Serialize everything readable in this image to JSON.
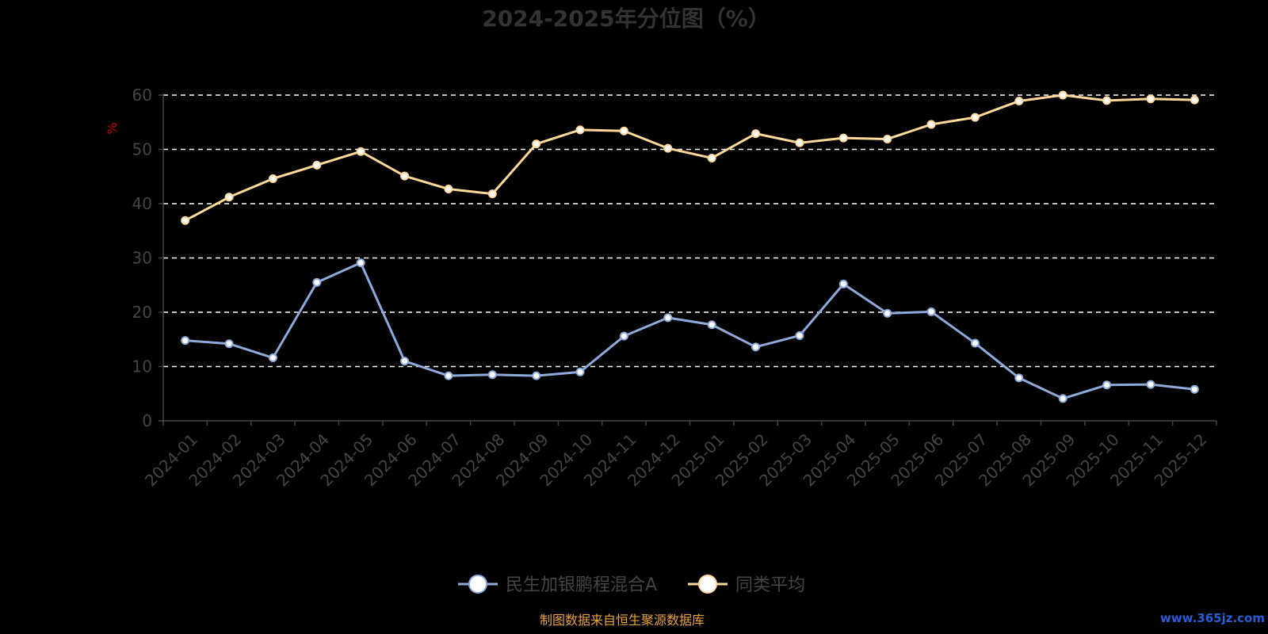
{
  "chart_data": {
    "type": "line",
    "title": "2024-2025年分位图（%）",
    "ylabel": "%",
    "ylim": [
      0,
      60
    ],
    "yticks": [
      0,
      10,
      20,
      30,
      40,
      50,
      60
    ],
    "grid": true,
    "legend_position": "bottom",
    "categories": [
      "2024-01",
      "2024-02",
      "2024-03",
      "2024-04",
      "2024-05",
      "2024-06",
      "2024-07",
      "2024-08",
      "2024-09",
      "2024-10",
      "2024-11",
      "2024-12",
      "2025-01",
      "2025-02",
      "2025-03",
      "2025-04",
      "2025-05",
      "2025-06",
      "2025-07",
      "2025-08",
      "2025-09",
      "2025-10",
      "2025-11",
      "2025-12"
    ],
    "series": [
      {
        "name": "民生加银鹏程混合A",
        "color": "#8eaadb",
        "values": [
          14.8,
          14.2,
          11.6,
          25.5,
          29.1,
          11.0,
          8.3,
          8.5,
          8.3,
          9.0,
          15.6,
          19.0,
          17.7,
          13.6,
          15.7,
          25.2,
          19.8,
          20.1,
          14.3,
          7.9,
          4.1,
          6.6,
          6.7,
          5.8
        ]
      },
      {
        "name": "同类平均",
        "color": "#ffd89a",
        "values": [
          36.9,
          41.2,
          44.6,
          47.1,
          49.6,
          45.1,
          42.7,
          41.8,
          51.0,
          53.6,
          53.4,
          50.2,
          48.4,
          52.9,
          51.2,
          52.1,
          51.9,
          54.6,
          55.9,
          58.9,
          60.0,
          59.0,
          59.3,
          59.1
        ]
      }
    ]
  },
  "colors": {
    "axis": "#444444",
    "grid": "#ffffff",
    "ylabel": "#cc0000",
    "source": "#e8a33c",
    "watermark": "#2a5bd7"
  },
  "footer": {
    "source": "制图数据来自恒生聚源数据库",
    "watermark": "www.365jz.com"
  }
}
